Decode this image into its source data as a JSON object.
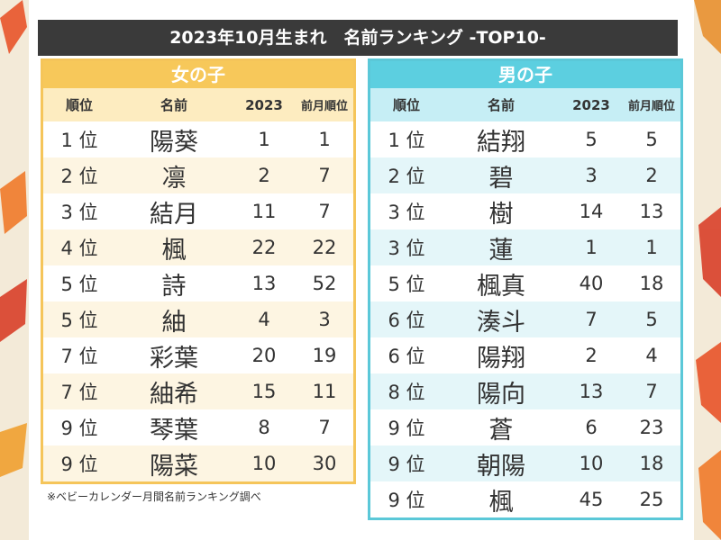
{
  "header": {
    "title": "2023年10月生まれ　名前ランキング -TOP10-"
  },
  "tables": [
    {
      "title": "女の子",
      "columns": [
        "順位",
        "名前",
        "2023",
        "前月順位"
      ],
      "rows": [
        [
          "1 位",
          "陽葵",
          1,
          1
        ],
        [
          "2 位",
          "凛",
          2,
          7
        ],
        [
          "3 位",
          "結月",
          11,
          7
        ],
        [
          "4 位",
          "楓",
          22,
          22
        ],
        [
          "5 位",
          "詩",
          13,
          52
        ],
        [
          "5 位",
          "紬",
          4,
          3
        ],
        [
          "7 位",
          "彩葉",
          20,
          19
        ],
        [
          "7 位",
          "紬希",
          15,
          11
        ],
        [
          "9 位",
          "琴葉",
          8,
          7
        ],
        [
          "9 位",
          "陽菜",
          10,
          30
        ]
      ]
    },
    {
      "title": "男の子",
      "columns": [
        "順位",
        "名前",
        "2023",
        "前月順位"
      ],
      "rows": [
        [
          "1 位",
          "結翔",
          5,
          5
        ],
        [
          "2 位",
          "碧",
          3,
          2
        ],
        [
          "3 位",
          "樹",
          14,
          13
        ],
        [
          "3 位",
          "蓮",
          1,
          1
        ],
        [
          "5 位",
          "楓真",
          40,
          18
        ],
        [
          "6 位",
          "湊斗",
          7,
          5
        ],
        [
          "6 位",
          "陽翔",
          2,
          4
        ],
        [
          "8 位",
          "陽向",
          13,
          7
        ],
        [
          "9 位",
          "蒼",
          6,
          23
        ],
        [
          "9 位",
          "朝陽",
          10,
          18
        ],
        [
          "9 位",
          "楓",
          45,
          25
        ]
      ]
    }
  ],
  "footnote": "※ベビーカレンダー月間名前ランキング調べ"
}
